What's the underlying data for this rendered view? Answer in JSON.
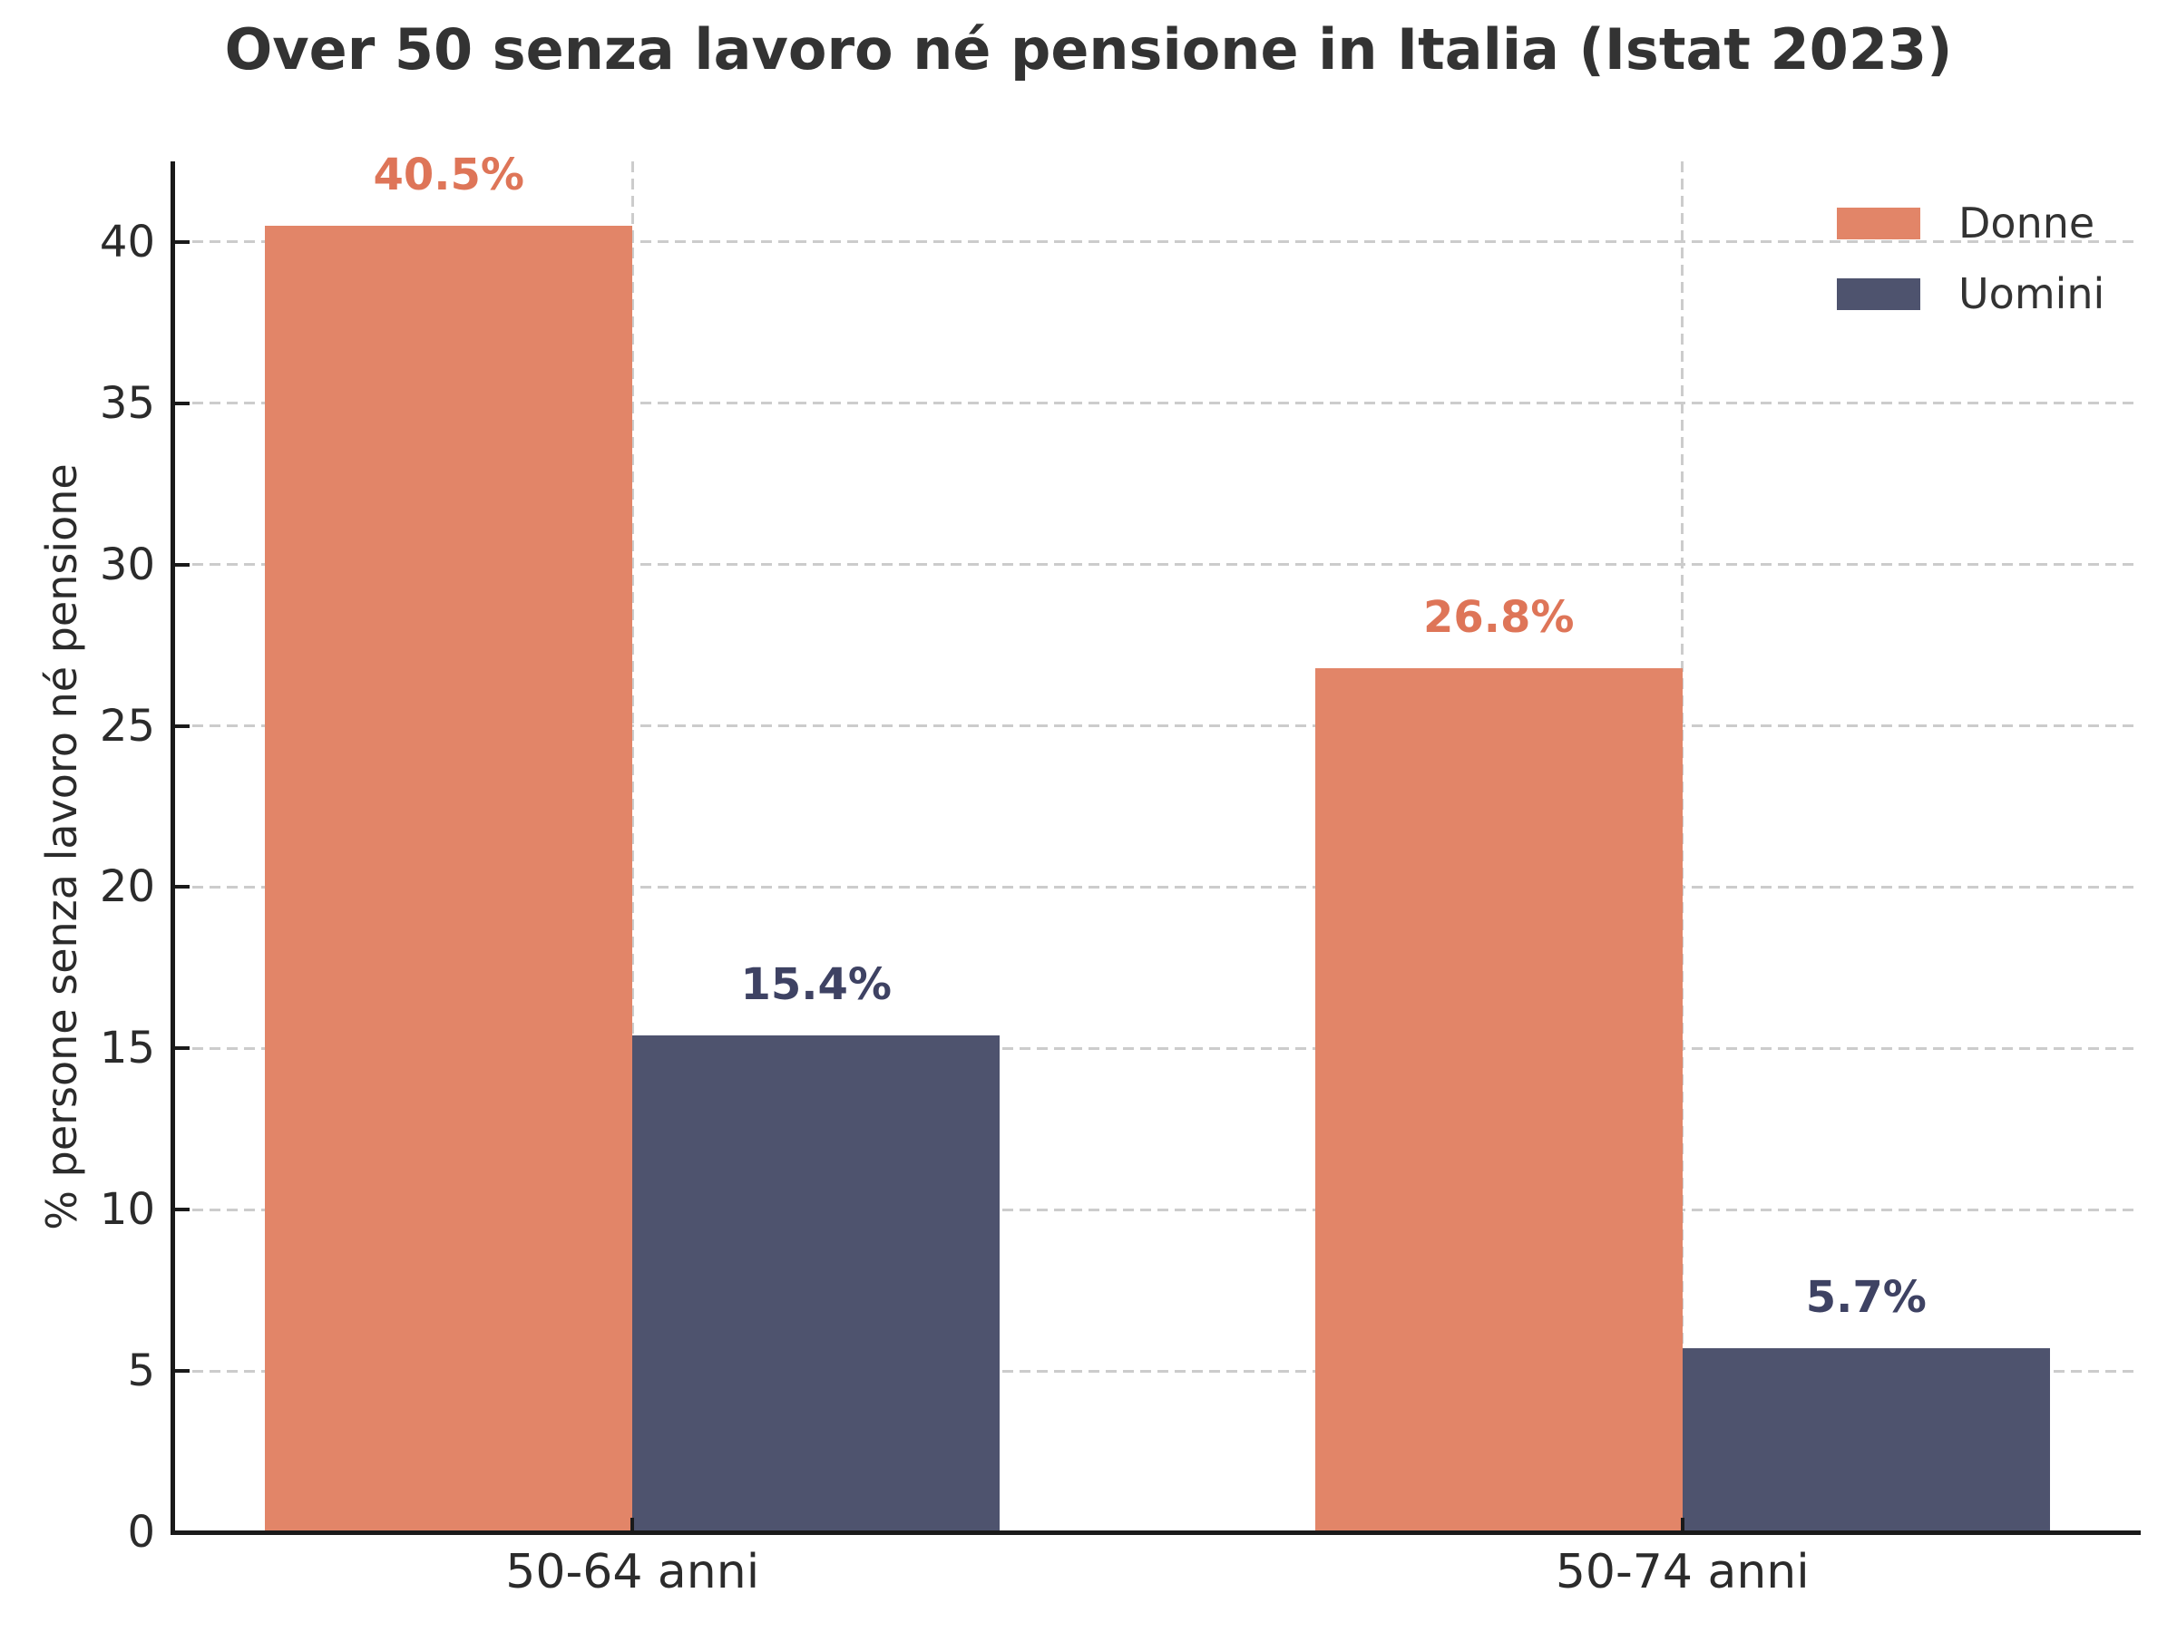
{
  "title": "Over 50 senza lavoro né pensione in Italia (Istat 2023)",
  "chart_data": {
    "type": "bar",
    "title": "Over 50 senza lavoro né pensione in Italia (Istat 2023)",
    "categories": [
      "50-64 anni",
      "50-74 anni"
    ],
    "series": [
      {
        "name": "Donne",
        "values": [
          40.5,
          26.8
        ],
        "labels": [
          "40.5%",
          "26.8%"
        ],
        "color": "#E28568",
        "label_color": "#DE7558"
      },
      {
        "name": "Uomini",
        "values": [
          15.4,
          5.7
        ],
        "labels": [
          "15.4%",
          "5.7%"
        ],
        "color": "#4E536E",
        "label_color": "#3E4263"
      }
    ],
    "xlabel": "",
    "ylabel": "% persone senza lavoro né pensione",
    "yticks": [
      0,
      5,
      10,
      15,
      20,
      25,
      30,
      35,
      40
    ],
    "ylim": [
      0,
      42.5
    ],
    "grid": true,
    "grid_style": "dashed",
    "legend_position": "upper right",
    "legend_frame": false
  },
  "colors": {
    "background": "#ffffff",
    "title_text": "#333333",
    "tick_text": "#2b2b2b",
    "gridline": "#cccccc",
    "spine": "#1a1a1a",
    "donne": "#E28568",
    "uomini": "#4E536E"
  }
}
